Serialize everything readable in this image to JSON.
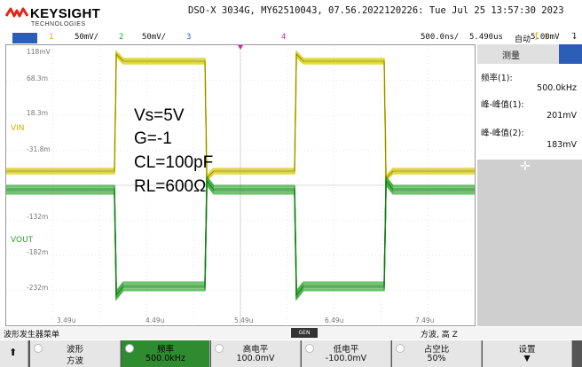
{
  "header": {
    "brand": "KEYSIGHT",
    "brand_sub": "TECHNOLOGIES",
    "model_info": "DSO-X 3034G, MY62510043, 07.56.2022120226: Tue Jul 25 13:57:30 2023"
  },
  "channel_bar": {
    "ch1": {
      "label": "1",
      "scale": "50mV/"
    },
    "ch2": {
      "label": "2",
      "scale": "50mV/"
    },
    "ch3": {
      "label": "3"
    },
    "ch4": {
      "label": "4"
    },
    "timebase": "500.0ns/",
    "delay": "5.490us",
    "acq_mode": "自动",
    "trigger_channel": "1",
    "trigger_level": "5.00mV"
  },
  "scope": {
    "y_labels": [
      "118mV",
      "68.3m",
      "18.3m",
      "-31.8m",
      "-132m",
      "-182m",
      "-232m"
    ],
    "x_labels": [
      "3.49u",
      "4.49u",
      "5.49u",
      "6.49u",
      "7.49u"
    ],
    "vin_marker": "VIN",
    "vout_marker": "VOUT",
    "annotations": [
      "Vs=5V",
      "G=-1",
      "CL=100pF",
      "RL=600Ω"
    ],
    "colors": {
      "ch1": "#d6c800",
      "ch2": "#22a022",
      "grid": "#cfcfcf"
    }
  },
  "panel": {
    "title": "测量",
    "measurements": [
      {
        "label": "频率(1):",
        "value": "500.0kHz"
      },
      {
        "label": "峰-峰值(1):",
        "value": "201mV"
      },
      {
        "label": "峰-峰值(2):",
        "value": "183mV"
      }
    ]
  },
  "status": {
    "left": "波形发生器菜单",
    "badge": "GEN",
    "right": "方波, 高 Z"
  },
  "softkeys": [
    {
      "line1": "波形",
      "line2": "方波"
    },
    {
      "line1": "频率",
      "line2": "500.0kHz"
    },
    {
      "line1": "高电平",
      "line2": "100.0mV"
    },
    {
      "line1": "低电平",
      "line2": "-100.0mV"
    },
    {
      "line1": "占空比",
      "line2": "50%"
    },
    {
      "line1": "设置",
      "line2": "▼"
    }
  ]
}
